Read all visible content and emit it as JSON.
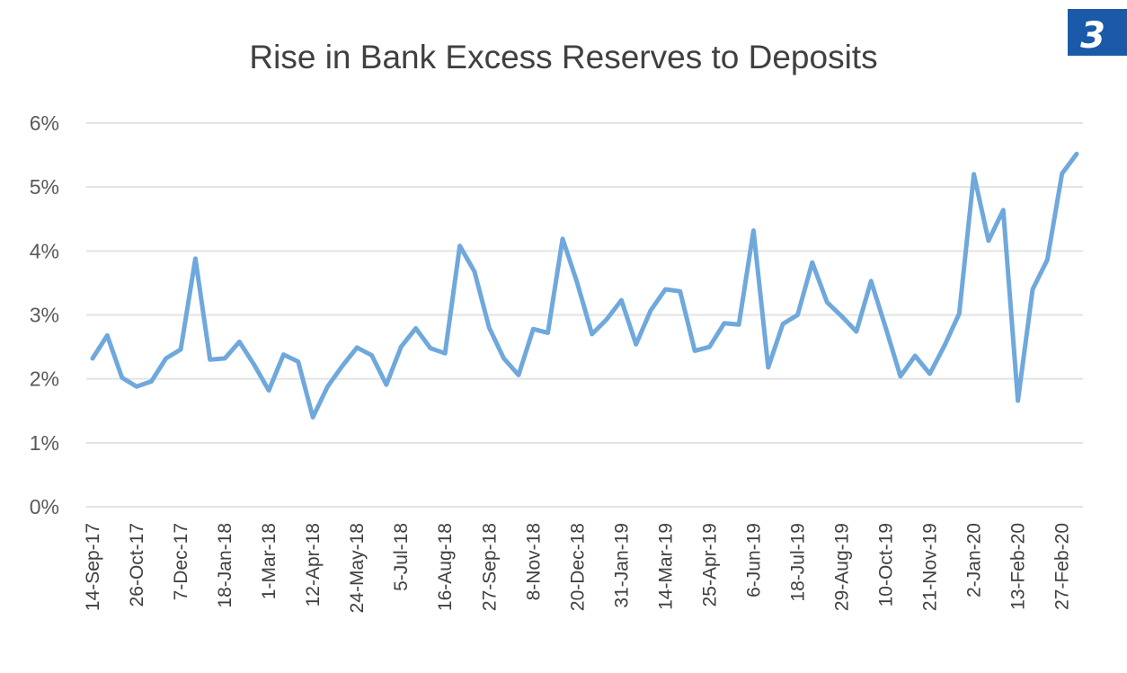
{
  "chart_data": {
    "type": "line",
    "title": "Rise in Bank Excess Reserves to Deposits",
    "xlabel": "",
    "ylabel": "",
    "ylim": [
      0,
      6
    ],
    "y_ticks": [
      "0%",
      "1%",
      "2%",
      "3%",
      "4%",
      "5%",
      "6%"
    ],
    "grid": true,
    "x_tick_labels": [
      "14-Sep-17",
      "26-Oct-17",
      "7-Dec-17",
      "18-Jan-18",
      "1-Mar-18",
      "12-Apr-18",
      "24-May-18",
      "5-Jul-18",
      "16-Aug-18",
      "27-Sep-18",
      "8-Nov-18",
      "20-Dec-18",
      "31-Jan-19",
      "14-Mar-19",
      "25-Apr-19",
      "6-Jun-19",
      "18-Jul-19",
      "29-Aug-19",
      "10-Oct-19",
      "21-Nov-19",
      "2-Jan-20",
      "13-Feb-20",
      "27-Feb-20"
    ],
    "series": [
      {
        "color": "#6fa8dc",
        "values": [
          2.32,
          2.68,
          2.02,
          1.88,
          1.96,
          2.32,
          2.46,
          3.88,
          2.3,
          2.32,
          2.58,
          2.22,
          1.82,
          2.38,
          2.27,
          1.4,
          1.88,
          2.2,
          2.49,
          2.37,
          1.91,
          2.5,
          2.79,
          2.48,
          2.4,
          4.08,
          3.68,
          2.8,
          2.32,
          2.06,
          2.78,
          2.72,
          4.19,
          3.5,
          2.7,
          2.93,
          3.23,
          2.54,
          3.07,
          3.4,
          3.37,
          2.44,
          2.5,
          2.87,
          2.85,
          4.32,
          2.18,
          2.86,
          3.0,
          3.82,
          3.2,
          2.98,
          2.74,
          3.53,
          2.8,
          2.04,
          2.36,
          2.08,
          2.52,
          3.02,
          5.2,
          4.16,
          4.64,
          1.66,
          3.4,
          3.86,
          5.21,
          5.52
        ]
      }
    ]
  },
  "badge": {
    "text": "3",
    "color": "#1a5aa8"
  }
}
